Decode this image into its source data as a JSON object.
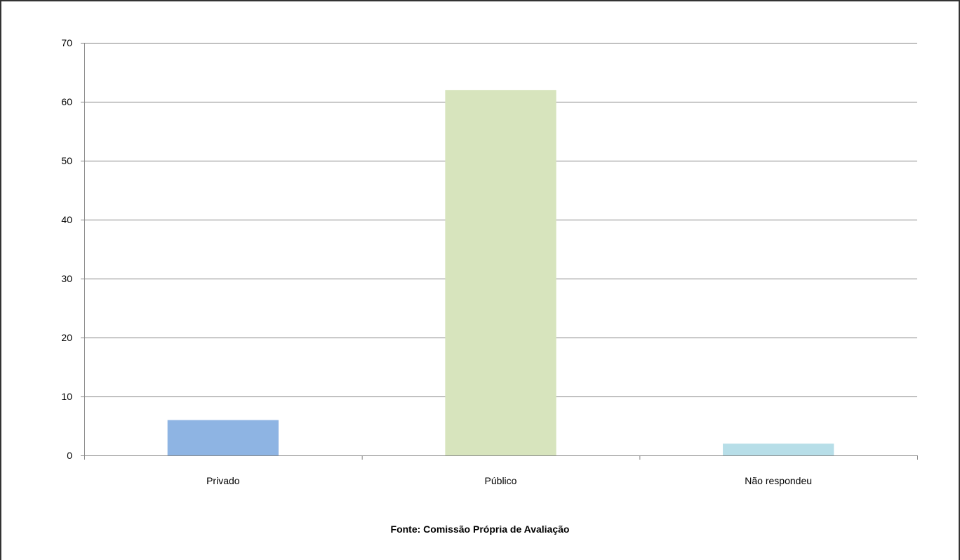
{
  "chart_data": {
    "type": "bar",
    "categories": [
      "Privado",
      "Público",
      "Não respondeu"
    ],
    "values": [
      6,
      62,
      2
    ],
    "colors": [
      "#8eb4e3",
      "#d7e4bd",
      "#b7dee8"
    ],
    "title": "",
    "xlabel": "",
    "ylabel": "",
    "ylim": [
      0,
      70
    ],
    "yticks": [
      0,
      10,
      20,
      30,
      40,
      50,
      60,
      70
    ],
    "grid": true,
    "legend": "none"
  },
  "source": "Fonte: Comissão Própria de Avaliação"
}
